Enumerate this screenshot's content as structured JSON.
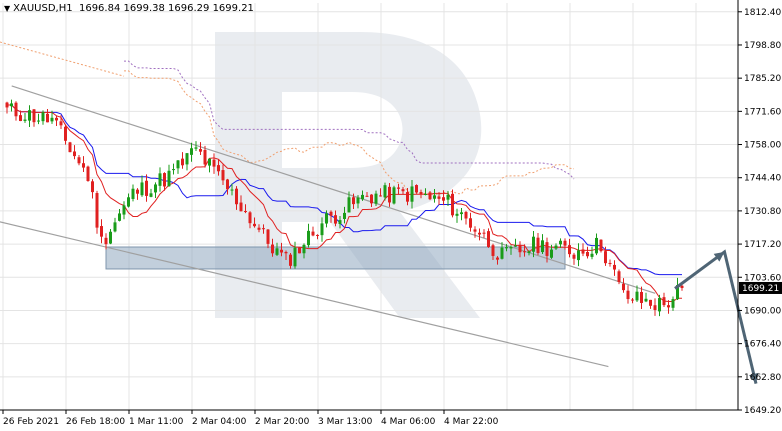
{
  "header": {
    "symbol": "XAUUSD,H1",
    "ohlc": "1696.84 1699.38 1696.29 1699.21"
  },
  "colors": {
    "bull": "#1a9c1a",
    "bear": "#e02020",
    "tenkan": "#e02020",
    "kijun": "#1a1aee",
    "span_a": "#f0a070",
    "span_b": "#a070c0",
    "channel": "#a0a0a0",
    "zone": "#8fa8c0",
    "arrow": "#4f6575",
    "grid": "#e4e4e4",
    "watermark": "#e9ecf0"
  },
  "chart_data": {
    "type": "candlestick",
    "symbol": "XAUUSD",
    "timeframe": "H1",
    "ylim": [
      1649.2,
      1816.0
    ],
    "y_ticks": [
      "1812.40",
      "1798.80",
      "1785.20",
      "1771.60",
      "1758.00",
      "1744.40",
      "1730.80",
      "1717.20",
      "1703.60",
      "1690.00",
      "1676.40",
      "1662.80",
      "1649.20"
    ],
    "current_price": "1699.21",
    "x_ticks": [
      "26 Feb 2021",
      "26 Feb 18:00",
      "1 Mar 11:00",
      "2 Mar 04:00",
      "2 Mar 20:00",
      "3 Mar 13:00",
      "4 Mar 06:00",
      "4 Mar 22:00"
    ],
    "candle_anchors": [
      {
        "t": 0,
        "price": 1772
      },
      {
        "t": 10,
        "price": 1768
      },
      {
        "t": 18,
        "price": 1745
      },
      {
        "t": 21,
        "price": 1718
      },
      {
        "t": 28,
        "price": 1738
      },
      {
        "t": 36,
        "price": 1745
      },
      {
        "t": 42,
        "price": 1756
      },
      {
        "t": 52,
        "price": 1733
      },
      {
        "t": 58,
        "price": 1718
      },
      {
        "t": 62,
        "price": 1710
      },
      {
        "t": 70,
        "price": 1726
      },
      {
        "t": 80,
        "price": 1737
      },
      {
        "t": 90,
        "price": 1738
      },
      {
        "t": 98,
        "price": 1734
      },
      {
        "t": 104,
        "price": 1724
      },
      {
        "t": 110,
        "price": 1712
      },
      {
        "t": 118,
        "price": 1717
      },
      {
        "t": 126,
        "price": 1714
      },
      {
        "t": 132,
        "price": 1717
      },
      {
        "t": 137,
        "price": 1696
      },
      {
        "t": 141,
        "price": 1694
      },
      {
        "t": 146,
        "price": 1692
      },
      {
        "t": 150,
        "price": 1699.21
      }
    ],
    "channel_upper": [
      [
        1,
        1782
      ],
      [
        56,
        1697
      ]
    ],
    "channel_lower": [
      [
        -5,
        1732
      ],
      [
        52,
        1667
      ]
    ],
    "resistance_zone": [
      1707,
      1716
    ],
    "forecast_path": [
      [
        148,
        1699
      ],
      [
        159,
        1714
      ],
      [
        166,
        1660
      ]
    ]
  }
}
